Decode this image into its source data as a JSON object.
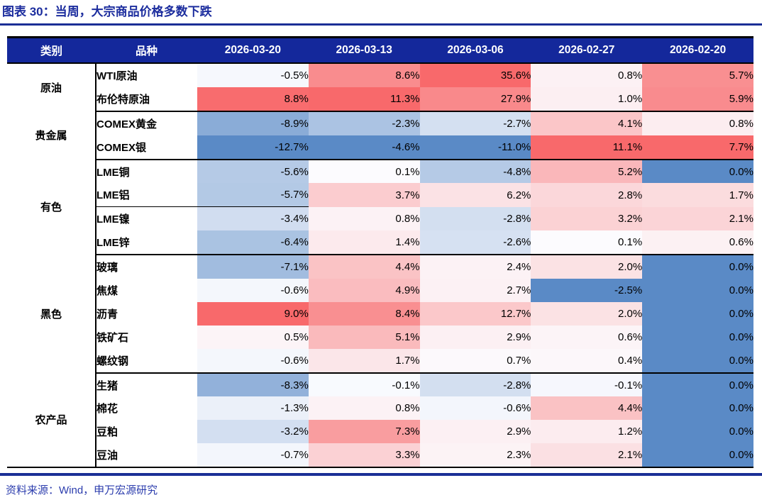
{
  "title": "图表 30：当周，大宗商品价格多数下跌",
  "source_note": "资料来源：Wind，申万宏源研究",
  "colors": {
    "header_bg": "#14289B",
    "header_text": "#FFFFFF",
    "title": "#1C2D9E",
    "rule": "#1B2F96",
    "source_text": "#2B3CAD",
    "border": "#000000"
  },
  "chart_data": {
    "type": "heatmap",
    "figure_label": "图表 30",
    "title": "当周，大宗商品价格多数下跌",
    "unit": "%",
    "columns": [
      "类别",
      "品种",
      "2026-03-20",
      "2026-03-13",
      "2026-03-06",
      "2026-02-27",
      "2026-02-20"
    ],
    "color_scale": {
      "min_color": "#5A8AC6",
      "mid_color": "#FCFCFF",
      "max_color": "#F8696B",
      "midpoint_value": 0,
      "scaled_per": "column"
    },
    "groups": [
      {
        "category": "原油",
        "rows": [
          {
            "name": "WTI原油",
            "values": [
              -0.5,
              8.6,
              35.6,
              0.8,
              5.7
            ]
          },
          {
            "name": "布伦特原油",
            "values": [
              8.8,
              11.3,
              27.9,
              1.0,
              5.9
            ]
          }
        ]
      },
      {
        "category": "贵金属",
        "rows": [
          {
            "name": "COMEX黄金",
            "values": [
              -8.9,
              -2.3,
              -2.7,
              4.1,
              0.8
            ]
          },
          {
            "name": "COMEX银",
            "values": [
              -12.7,
              -4.6,
              -11.0,
              11.1,
              7.7
            ]
          }
        ]
      },
      {
        "category": "有色",
        "rows": [
          {
            "name": "LME铜",
            "values": [
              -5.6,
              0.1,
              -4.8,
              5.2,
              0.0
            ]
          },
          {
            "name": "LME铝",
            "values": [
              -5.7,
              3.7,
              6.2,
              2.8,
              1.7
            ]
          },
          {
            "name": "LME镍",
            "values": [
              -3.4,
              0.8,
              -2.8,
              3.2,
              2.1
            ]
          },
          {
            "name": "LME锌",
            "values": [
              -6.4,
              1.4,
              -2.6,
              0.1,
              0.6
            ]
          }
        ]
      },
      {
        "category": "黑色",
        "rows": [
          {
            "name": "玻璃",
            "values": [
              -7.1,
              4.4,
              2.4,
              2.0,
              0.0
            ]
          },
          {
            "name": "焦煤",
            "values": [
              -0.6,
              4.9,
              2.7,
              -2.5,
              0.0
            ]
          },
          {
            "name": "沥青",
            "values": [
              9.0,
              8.4,
              12.7,
              2.0,
              0.0
            ]
          },
          {
            "name": "铁矿石",
            "values": [
              0.5,
              5.1,
              2.9,
              0.6,
              0.0
            ]
          },
          {
            "name": "螺纹钢",
            "values": [
              -0.6,
              1.7,
              0.7,
              0.4,
              0.0
            ]
          }
        ]
      },
      {
        "category": "农产品",
        "rows": [
          {
            "name": "生猪",
            "values": [
              -8.3,
              -0.1,
              -2.8,
              -0.1,
              0.0
            ]
          },
          {
            "name": "棉花",
            "values": [
              -1.3,
              0.8,
              -0.6,
              4.4,
              0.0
            ]
          },
          {
            "name": "豆粕",
            "values": [
              -3.2,
              7.3,
              2.9,
              1.2,
              0.0
            ]
          },
          {
            "name": "豆油",
            "values": [
              -0.7,
              3.3,
              2.3,
              2.1,
              0.0
            ]
          }
        ]
      }
    ]
  }
}
